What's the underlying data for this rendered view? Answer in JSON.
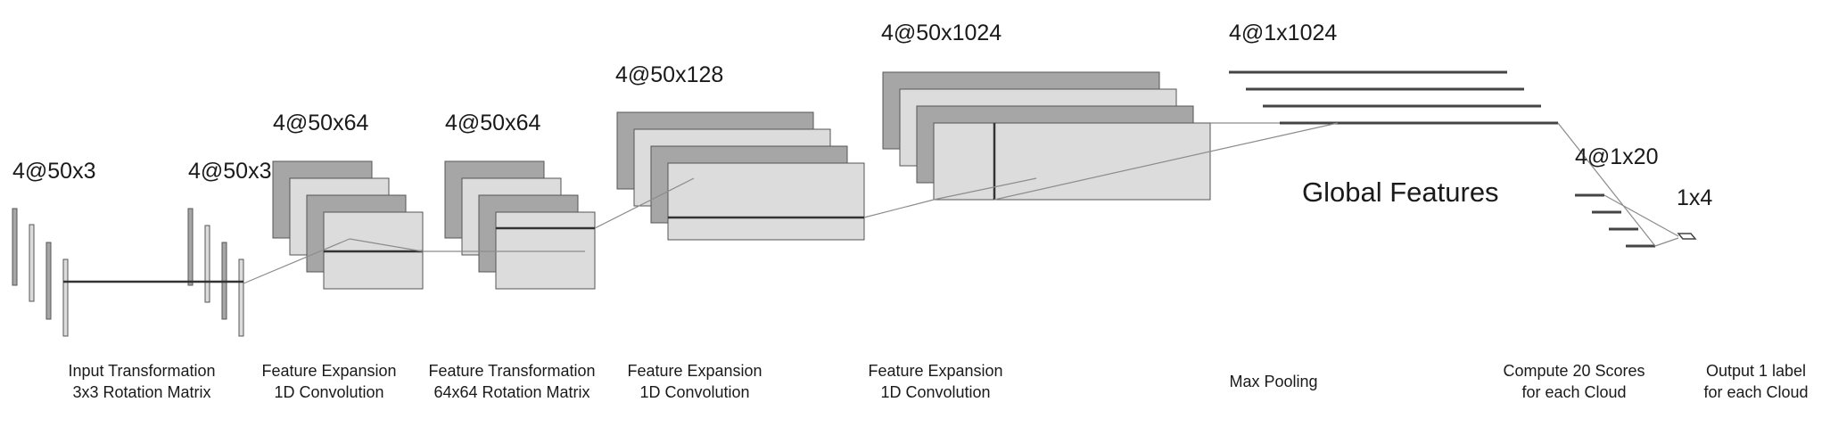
{
  "shape_labels": {
    "input": "4@50x3",
    "input_transformed": "4@50x3",
    "expand1": "4@50x64",
    "transform2": "4@50x64",
    "expand2": "4@50x128",
    "expand3": "4@50x1024",
    "pooled": "4@1x1024",
    "scores": "4@1x20",
    "output": "1x4"
  },
  "global_features_label": "Global Features",
  "operations": [
    {
      "id": "input-transformation",
      "line1": "Input Transformation",
      "line2": "3x3 Rotation Matrix"
    },
    {
      "id": "feature-expansion-1",
      "line1": "Feature Expansion",
      "line2": "1D Convolution"
    },
    {
      "id": "feature-transformation",
      "line1": "Feature Transformation",
      "line2": "64x64 Rotation Matrix"
    },
    {
      "id": "feature-expansion-2",
      "line1": "Feature Expansion",
      "line2": "1D Convolution"
    },
    {
      "id": "feature-expansion-3",
      "line1": "Feature Expansion",
      "line2": "1D Convolution"
    },
    {
      "id": "max-pooling",
      "line1": "Max Pooling",
      "line2": ""
    },
    {
      "id": "compute-scores",
      "line1": "Compute 20 Scores",
      "line2": "for each Cloud"
    },
    {
      "id": "output-label",
      "line1": "Output 1 label",
      "line2": "for each Cloud"
    }
  ],
  "colors": {
    "dark_fill": "#a6a6a6",
    "light_fill": "#dcdcdc",
    "stroke": "#555555",
    "connector": "#8c8c8c"
  }
}
